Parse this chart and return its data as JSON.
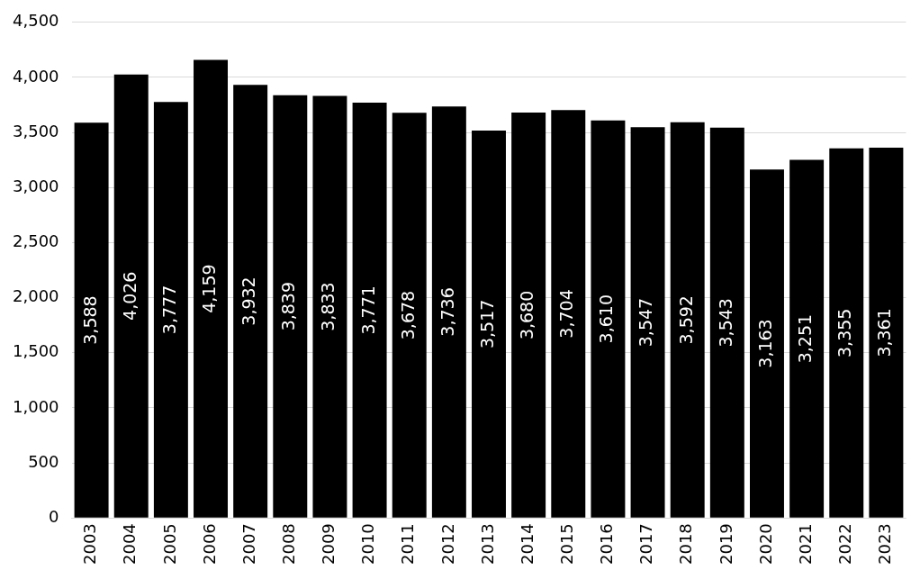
{
  "chart_data": {
    "type": "bar",
    "categories": [
      "2003",
      "2004",
      "2005",
      "2006",
      "2007",
      "2008",
      "2009",
      "2010",
      "2011",
      "2012",
      "2013",
      "2014",
      "2015",
      "2016",
      "2017",
      "2018",
      "2019",
      "2020",
      "2021",
      "2022",
      "2023"
    ],
    "values": [
      3588,
      4026,
      3777,
      4159,
      3932,
      3839,
      3833,
      3771,
      3678,
      3736,
      3517,
      3680,
      3704,
      3610,
      3547,
      3592,
      3543,
      3163,
      3251,
      3355,
      3361
    ],
    "value_labels": [
      "3,588",
      "4,026",
      "3,777",
      "4,159",
      "3,932",
      "3,839",
      "3,833",
      "3,771",
      "3,678",
      "3,736",
      "3,517",
      "3,680",
      "3,704",
      "3,610",
      "3,547",
      "3,592",
      "3,543",
      "3,163",
      "3,251",
      "3,355",
      "3,361"
    ],
    "color": "#000000",
    "ylim": [
      0,
      4500
    ],
    "yticks": [
      0,
      500,
      {
        "value": 1000,
        "label": "1,000"
      },
      {
        "value": 1500,
        "label": "1,500"
      },
      {
        "value": 2000,
        "label": "2,000"
      },
      {
        "value": 2500,
        "label": "2,500"
      },
      {
        "value": 3000,
        "label": "3,000"
      },
      {
        "value": 3500,
        "label": "3,500"
      },
      {
        "value": 4000,
        "label": "4,000"
      },
      {
        "value": 4500,
        "label": "4,500"
      }
    ],
    "grid": "y"
  }
}
